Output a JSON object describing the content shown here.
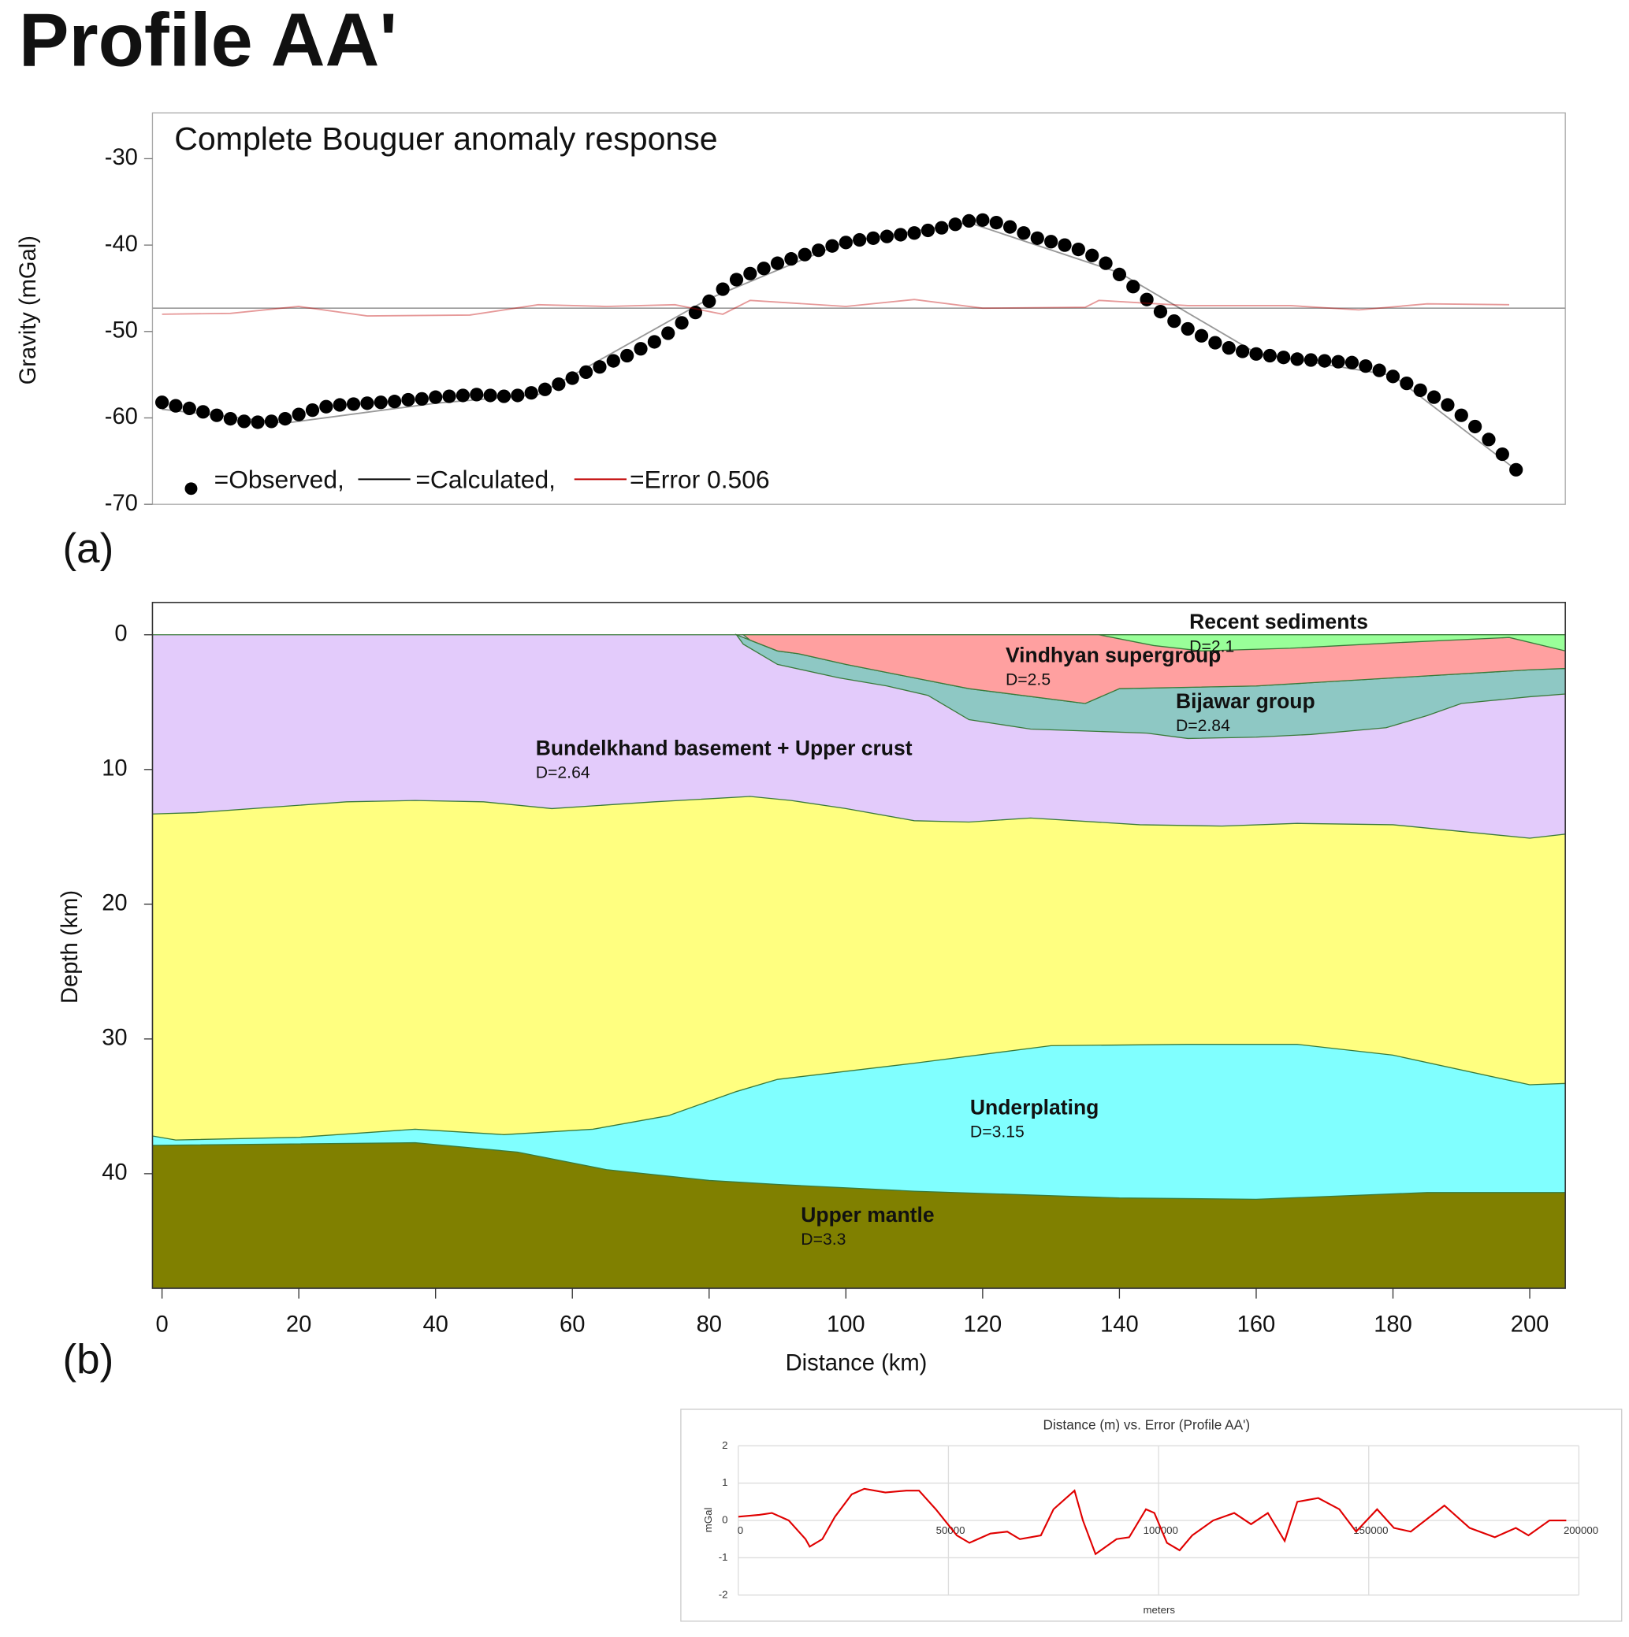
{
  "page_title": "Profile AA'",
  "chart_data": [
    {
      "type": "scatter",
      "panel_label": "(a)",
      "title": "Complete Bouguer anomaly response",
      "y_label": "Gravity (mGal)",
      "xlim": [
        -1.4,
        205.2
      ],
      "ylim": [
        -70,
        -24.7
      ],
      "yticks": [
        -70,
        -60,
        -50,
        -40,
        -30
      ],
      "reference_line": -47.3,
      "series": [
        {
          "name": "=Observed,",
          "color": "#000000",
          "style": "dots",
          "x": [
            0,
            2,
            4,
            6,
            8,
            10,
            12,
            14,
            16,
            18,
            20,
            22,
            24,
            26,
            28,
            30,
            32,
            34,
            36,
            38,
            40,
            42,
            44,
            46,
            48,
            50,
            52,
            54,
            56,
            58,
            60,
            62,
            64,
            66,
            68,
            70,
            72,
            74,
            76,
            78,
            80,
            82,
            84,
            86,
            88,
            90,
            92,
            94,
            96,
            98,
            100,
            102,
            104,
            106,
            108,
            110,
            112,
            114,
            116,
            118,
            120,
            122,
            124,
            126,
            128,
            130,
            132,
            134,
            136,
            138,
            140,
            142,
            144,
            146,
            148,
            150,
            152,
            154,
            156,
            158,
            160,
            162,
            164,
            166,
            168,
            170,
            172,
            174,
            176,
            178,
            180,
            182,
            184,
            186,
            188,
            190,
            192,
            194,
            196,
            198
          ],
          "values": [
            -58.2,
            -58.6,
            -58.9,
            -59.3,
            -59.7,
            -60.1,
            -60.4,
            -60.5,
            -60.4,
            -60.1,
            -59.6,
            -59.1,
            -58.7,
            -58.5,
            -58.4,
            -58.3,
            -58.2,
            -58.1,
            -57.9,
            -57.8,
            -57.6,
            -57.5,
            -57.4,
            -57.3,
            -57.4,
            -57.5,
            -57.4,
            -57.1,
            -56.7,
            -56.1,
            -55.4,
            -54.7,
            -54.1,
            -53.4,
            -52.8,
            -52.0,
            -51.2,
            -50.2,
            -49.0,
            -47.8,
            -46.5,
            -45.1,
            -44.0,
            -43.3,
            -42.7,
            -42.1,
            -41.6,
            -41.1,
            -40.6,
            -40.1,
            -39.7,
            -39.4,
            -39.2,
            -39.0,
            -38.8,
            -38.6,
            -38.3,
            -38.0,
            -37.6,
            -37.2,
            -37.1,
            -37.4,
            -37.9,
            -38.6,
            -39.2,
            -39.6,
            -40.0,
            -40.5,
            -41.2,
            -42.1,
            -43.4,
            -44.8,
            -46.3,
            -47.7,
            -48.8,
            -49.7,
            -50.5,
            -51.3,
            -51.9,
            -52.3,
            -52.6,
            -52.8,
            -53.0,
            -53.2,
            -53.3,
            -53.4,
            -53.5,
            -53.6,
            -54.0,
            -54.5,
            -55.2,
            -56.0,
            -56.8,
            -57.6,
            -58.5,
            -59.7,
            -61.0,
            -62.5,
            -64.2,
            -66.0
          ]
        },
        {
          "name": "=Calculated,",
          "color": "#000000",
          "style": "line",
          "x": [
            0,
            18,
            40,
            55,
            80,
            100,
            118,
            140,
            160,
            180,
            198
          ],
          "values": [
            -59,
            -60.6,
            -58.3,
            -57.3,
            -46.2,
            -39.6,
            -37.4,
            -43.2,
            -52.5,
            -55.1,
            -66
          ]
        },
        {
          "name": "=Error 0.506",
          "color": "#c00000",
          "style": "line",
          "x": [
            0,
            10,
            20,
            30,
            45,
            55,
            65,
            75,
            82,
            86,
            100,
            110,
            120,
            135,
            137,
            150,
            165,
            175,
            185,
            197
          ],
          "values": [
            -48,
            -47.9,
            -47.1,
            -48.2,
            -48.1,
            -46.9,
            -47.1,
            -46.9,
            -48,
            -46.4,
            -47.1,
            -46.3,
            -47.3,
            -47.2,
            -46.4,
            -47,
            -47,
            -47.5,
            -46.8,
            -46.9
          ]
        }
      ]
    },
    {
      "type": "section",
      "panel_label": "(b)",
      "x_label": "Distance (km)",
      "y_label": "Depth (km)",
      "xlim": [
        -1.4,
        205.2
      ],
      "ylim": [
        48.5,
        -2.4
      ],
      "xticks": [
        0,
        20,
        40,
        60,
        80,
        100,
        120,
        140,
        160,
        180,
        200
      ],
      "yticks": [
        0,
        10,
        20,
        30,
        40
      ],
      "layers": [
        {
          "name": "Bundelkhand basement + Upper crust",
          "density_label": "D=2.64",
          "color": "#e3cbfb",
          "shape": "to_bottom",
          "x": [
            -1.4,
            205.2
          ],
          "y": [
            0,
            0
          ]
        },
        {
          "color": "#ffff80",
          "shape": "to_bottom",
          "x": [
            -1.4,
            5,
            27,
            37,
            47,
            57,
            72,
            86,
            92,
            100,
            110,
            118,
            127,
            143,
            155,
            166,
            180,
            200,
            205.2
          ],
          "y": [
            13.3,
            13.2,
            12.4,
            12.3,
            12.4,
            12.9,
            12.4,
            12.0,
            12.3,
            12.9,
            13.8,
            13.9,
            13.6,
            14.1,
            14.2,
            14.0,
            14.1,
            15.1,
            14.8
          ]
        },
        {
          "name": "Underplating",
          "density_label": "D=3.15",
          "color": "#80ffff",
          "shape": "to_bottom",
          "x": [
            -1.4,
            2,
            20,
            37,
            50,
            63,
            74,
            84,
            90,
            110,
            130,
            150,
            166,
            180,
            200,
            205.2
          ],
          "y": [
            37.2,
            37.5,
            37.3,
            36.7,
            37.1,
            36.7,
            35.7,
            33.9,
            33.0,
            31.8,
            30.5,
            30.4,
            30.4,
            31.2,
            33.4,
            33.3
          ]
        },
        {
          "name": "Upper mantle",
          "density_label": "D=3.3",
          "color": "#808000",
          "shape": "to_bottom",
          "x": [
            -1.4,
            37,
            52,
            65,
            80,
            90,
            110,
            140,
            160,
            185,
            205.2
          ],
          "y": [
            37.9,
            37.7,
            38.4,
            39.7,
            40.5,
            40.8,
            41.3,
            41.8,
            41.9,
            41.4,
            41.4
          ]
        },
        {
          "name": "Bijawar group",
          "density_label": "D=2.84",
          "color": "#8ec8c4",
          "shape": "polygon",
          "x": [
            84,
            86,
            90,
            93,
            100,
            107,
            118,
            135,
            140,
            160,
            180,
            200,
            205.2,
            205.2,
            200,
            190,
            185,
            179,
            168,
            160,
            150,
            144,
            127,
            118,
            112,
            106,
            99,
            90,
            85
          ],
          "y": [
            0,
            0.4,
            1.2,
            1.4,
            2.2,
            2.9,
            4.0,
            5.1,
            4.0,
            3.8,
            3.2,
            2.6,
            2.5,
            4.4,
            4.6,
            5.1,
            6.0,
            6.9,
            7.4,
            7.6,
            7.7,
            7.3,
            7.0,
            6.3,
            4.5,
            3.8,
            3.2,
            2.2,
            0.7
          ]
        },
        {
          "name": "Vindhyan supergroup",
          "density_label": "D=2.5",
          "color": "#ffa0a0",
          "shape": "polygon",
          "x": [
            85,
            205.2,
            205.2,
            200,
            180,
            160,
            140,
            135,
            118,
            107,
            100,
            93,
            90,
            86
          ],
          "y": [
            0,
            0,
            2.5,
            2.6,
            3.2,
            3.8,
            4.0,
            5.1,
            4.0,
            2.9,
            2.2,
            1.4,
            1.2,
            0.4
          ]
        },
        {
          "name": "Recent sediments",
          "density_label": "D=2.1",
          "color": "#99ff99",
          "shape": "polygon",
          "x": [
            137,
            205.2,
            205.2,
            197,
            180,
            165,
            152,
            145
          ],
          "y": [
            0,
            0,
            1.2,
            0.2,
            0.6,
            1.0,
            1.2,
            0.8
          ]
        }
      ]
    },
    {
      "type": "line",
      "title": "Distance (m) vs. Error (Profile AA')",
      "x_label": "meters",
      "y_label": "mGal",
      "xlim": [
        0,
        200000
      ],
      "ylim": [
        -2,
        2
      ],
      "xticks": [
        0,
        50000,
        100000,
        150000,
        200000
      ],
      "yticks": [
        -2,
        -1,
        0,
        1,
        2
      ],
      "grid": true,
      "series": [
        {
          "color": "#e00000",
          "x": [
            0,
            5000,
            8000,
            12000,
            16000,
            17000,
            20000,
            23000,
            27000,
            30000,
            35000,
            40000,
            43000,
            47000,
            52000,
            55000,
            57000,
            60000,
            64000,
            67000,
            72000,
            75000,
            80000,
            82000,
            85000,
            90000,
            93000,
            97000,
            99000,
            102000,
            105000,
            108000,
            113000,
            118000,
            122000,
            126000,
            130000,
            133000,
            138000,
            143000,
            147000,
            152000,
            156000,
            160000,
            168000,
            174000,
            180000,
            185000,
            188000,
            193000,
            197000
          ],
          "values": [
            0.1,
            0.15,
            0.2,
            0.0,
            -0.5,
            -0.7,
            -0.5,
            0.1,
            0.7,
            0.85,
            0.75,
            0.8,
            0.8,
            0.3,
            -0.4,
            -0.6,
            -0.5,
            -0.35,
            -0.3,
            -0.5,
            -0.4,
            0.3,
            0.8,
            0.0,
            -0.9,
            -0.5,
            -0.45,
            0.3,
            0.2,
            -0.6,
            -0.8,
            -0.4,
            0.0,
            0.2,
            -0.1,
            0.2,
            -0.55,
            0.5,
            0.6,
            0.3,
            -0.3,
            0.3,
            -0.2,
            -0.3,
            0.4,
            -0.2,
            -0.45,
            -0.2,
            -0.4,
            0.0,
            0.0
          ]
        }
      ]
    }
  ]
}
